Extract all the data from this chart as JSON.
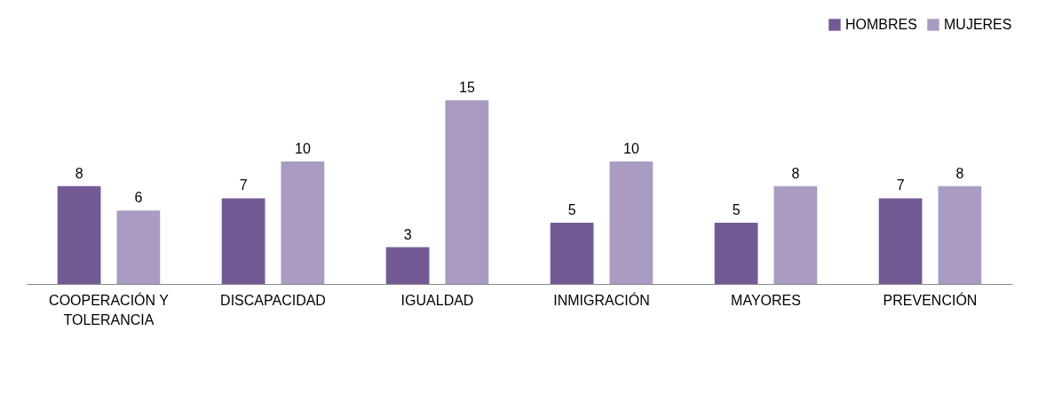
{
  "chart_data": {
    "type": "bar",
    "categories": [
      "COOPERACIÓN Y TOLERANCIA",
      "DISCAPACIDAD",
      "IGUALDAD",
      "INMIGRACIÓN",
      "MAYORES",
      "PREVENCIÓN"
    ],
    "series": [
      {
        "name": "HOMBRES",
        "color": "#745a94",
        "values": [
          8,
          7,
          3,
          5,
          5,
          7
        ]
      },
      {
        "name": "MUJERES",
        "color": "#a99bc2",
        "values": [
          6,
          10,
          15,
          10,
          8,
          8
        ]
      }
    ],
    "data_labels": true,
    "legend": "top right",
    "grid": false
  }
}
